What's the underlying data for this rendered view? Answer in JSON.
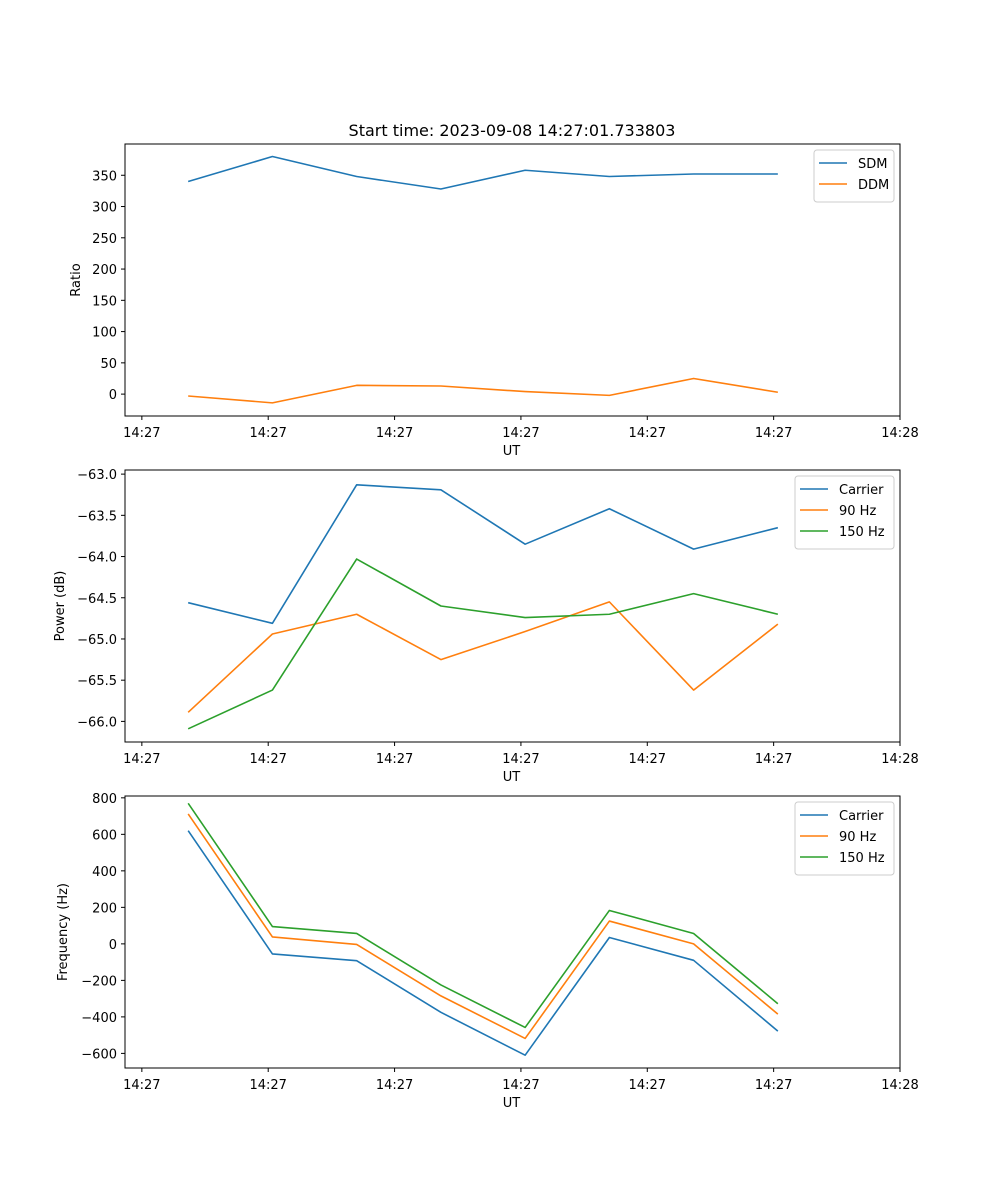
{
  "figure": {
    "title": "Start time: 2023-09-08 14:27:01.733803"
  },
  "chart_data": [
    {
      "type": "line",
      "title": "Start time: 2023-09-08 14:27:01.733803",
      "xlabel": "UT",
      "ylabel": "Ratio",
      "xlim": [
        -0.2,
        9.0
      ],
      "ylim": [
        -35,
        400
      ],
      "x": [
        0.55,
        1.55,
        2.55,
        3.55,
        4.55,
        5.55,
        6.55,
        7.55
      ],
      "xticks": [
        0,
        1.5,
        3,
        4.5,
        6,
        7.5,
        9
      ],
      "xtick_labels": [
        "14:27",
        "14:27",
        "14:27",
        "14:27",
        "14:27",
        "14:27",
        "14:28"
      ],
      "yticks": [
        0,
        50,
        100,
        150,
        200,
        250,
        300,
        350
      ],
      "ytick_labels": [
        "0",
        "50",
        "100",
        "150",
        "200",
        "250",
        "300",
        "350"
      ],
      "legend": "top-right",
      "series": [
        {
          "name": "SDM",
          "color": "#1f77b4",
          "values": [
            340,
            380,
            348,
            328,
            358,
            348,
            352,
            352
          ]
        },
        {
          "name": "DDM",
          "color": "#ff7f0e",
          "values": [
            -3,
            -14,
            14,
            13,
            4,
            -2,
            25,
            3
          ]
        }
      ]
    },
    {
      "type": "line",
      "xlabel": "UT",
      "ylabel": "Power (dB)",
      "xlim": [
        -0.2,
        9.0
      ],
      "ylim": [
        -66.25,
        -62.95
      ],
      "x": [
        0.55,
        1.55,
        2.55,
        3.55,
        4.55,
        5.55,
        6.55,
        7.55
      ],
      "xticks": [
        0,
        1.5,
        3,
        4.5,
        6,
        7.5,
        9
      ],
      "xtick_labels": [
        "14:27",
        "14:27",
        "14:27",
        "14:27",
        "14:27",
        "14:27",
        "14:28"
      ],
      "yticks": [
        -66.0,
        -65.5,
        -65.0,
        -64.5,
        -64.0,
        -63.5,
        -63.0
      ],
      "ytick_labels": [
        "−66.0",
        "−65.5",
        "−65.0",
        "−64.5",
        "−64.0",
        "−63.5",
        "−63.0"
      ],
      "legend": "top-right",
      "series": [
        {
          "name": "Carrier",
          "color": "#1f77b4",
          "values": [
            -64.56,
            -64.81,
            -63.13,
            -63.19,
            -63.85,
            -63.42,
            -63.91,
            -63.65
          ]
        },
        {
          "name": "90 Hz",
          "color": "#ff7f0e",
          "values": [
            -65.89,
            -64.94,
            -64.7,
            -65.25,
            -64.91,
            -64.55,
            -65.62,
            -64.82
          ]
        },
        {
          "name": "150 Hz",
          "color": "#2ca02c",
          "values": [
            -66.09,
            -65.62,
            -64.03,
            -64.6,
            -64.74,
            -64.7,
            -64.45,
            -64.7
          ]
        }
      ]
    },
    {
      "type": "line",
      "xlabel": "UT",
      "ylabel": "Frequency (Hz)",
      "xlim": [
        -0.2,
        9.0
      ],
      "ylim": [
        -680,
        810
      ],
      "x": [
        0.55,
        1.55,
        2.55,
        3.55,
        4.55,
        5.55,
        6.55,
        7.55
      ],
      "xticks": [
        0,
        1.5,
        3,
        4.5,
        6,
        7.5,
        9
      ],
      "xtick_labels": [
        "14:27",
        "14:27",
        "14:27",
        "14:27",
        "14:27",
        "14:27",
        "14:28"
      ],
      "yticks": [
        -600,
        -400,
        -200,
        0,
        200,
        400,
        600,
        800
      ],
      "ytick_labels": [
        "−600",
        "−400",
        "−200",
        "0",
        "200",
        "400",
        "600",
        "800"
      ],
      "legend": "top-right",
      "series": [
        {
          "name": "Carrier",
          "color": "#1f77b4",
          "values": [
            620,
            -55,
            -92,
            -375,
            -610,
            35,
            -90,
            -478
          ]
        },
        {
          "name": "90 Hz",
          "color": "#ff7f0e",
          "values": [
            712,
            38,
            -3,
            -285,
            -518,
            125,
            0,
            -385
          ]
        },
        {
          "name": "150 Hz",
          "color": "#2ca02c",
          "values": [
            770,
            95,
            57,
            -225,
            -458,
            183,
            57,
            -328
          ]
        }
      ]
    }
  ]
}
